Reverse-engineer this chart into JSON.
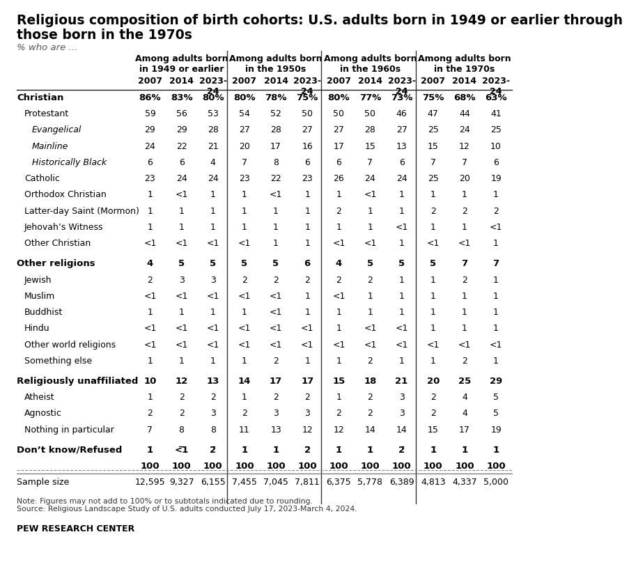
{
  "title_line1": "Religious composition of birth cohorts: U.S. adults born in 1949 or earlier through",
  "title_line2": "those born in the 1970s",
  "subtitle": "% who are ...",
  "col_group_headers": [
    "Among adults born\nin 1949 or earlier",
    "Among adults born\nin the 1950s",
    "Among adults born\nin the 1960s",
    "Among adults born\nin the 1970s"
  ],
  "col_years": [
    "2007",
    "2014",
    "2023-\n24"
  ],
  "rows": [
    {
      "label": "Christian",
      "indent": 0,
      "bold": true,
      "style": "normal",
      "values": [
        "86%",
        "83%",
        "80%",
        "80%",
        "78%",
        "75%",
        "80%",
        "77%",
        "73%",
        "75%",
        "68%",
        "63%"
      ]
    },
    {
      "label": "Protestant",
      "indent": 1,
      "bold": false,
      "style": "normal",
      "values": [
        "59",
        "56",
        "53",
        "54",
        "52",
        "50",
        "50",
        "50",
        "46",
        "47",
        "44",
        "41"
      ]
    },
    {
      "label": "Evangelical",
      "indent": 2,
      "bold": false,
      "style": "italic",
      "values": [
        "29",
        "29",
        "28",
        "27",
        "28",
        "27",
        "27",
        "28",
        "27",
        "25",
        "24",
        "25"
      ]
    },
    {
      "label": "Mainline",
      "indent": 2,
      "bold": false,
      "style": "italic",
      "values": [
        "24",
        "22",
        "21",
        "20",
        "17",
        "16",
        "17",
        "15",
        "13",
        "15",
        "12",
        "10"
      ]
    },
    {
      "label": "Historically Black",
      "indent": 2,
      "bold": false,
      "style": "italic",
      "values": [
        "6",
        "6",
        "4",
        "7",
        "8",
        "6",
        "6",
        "7",
        "6",
        "7",
        "7",
        "6"
      ]
    },
    {
      "label": "Catholic",
      "indent": 1,
      "bold": false,
      "style": "normal",
      "values": [
        "23",
        "24",
        "24",
        "23",
        "22",
        "23",
        "26",
        "24",
        "24",
        "25",
        "20",
        "19"
      ]
    },
    {
      "label": "Orthodox Christian",
      "indent": 1,
      "bold": false,
      "style": "normal",
      "values": [
        "1",
        "<1",
        "1",
        "1",
        "<1",
        "1",
        "1",
        "<1",
        "1",
        "1",
        "1",
        "1"
      ]
    },
    {
      "label": "Latter-day Saint (Mormon)",
      "indent": 1,
      "bold": false,
      "style": "normal",
      "values": [
        "1",
        "1",
        "1",
        "1",
        "1",
        "1",
        "2",
        "1",
        "1",
        "2",
        "2",
        "2"
      ]
    },
    {
      "label": "Jehovah’s Witness",
      "indent": 1,
      "bold": false,
      "style": "normal",
      "values": [
        "1",
        "1",
        "1",
        "1",
        "1",
        "1",
        "1",
        "1",
        "<1",
        "1",
        "1",
        "<1"
      ]
    },
    {
      "label": "Other Christian",
      "indent": 1,
      "bold": false,
      "style": "normal",
      "values": [
        "<1",
        "<1",
        "<1",
        "<1",
        "1",
        "1",
        "<1",
        "<1",
        "1",
        "<1",
        "<1",
        "1"
      ]
    },
    {
      "label": "Other religions",
      "indent": 0,
      "bold": true,
      "style": "normal",
      "values": [
        "4",
        "5",
        "5",
        "5",
        "5",
        "6",
        "4",
        "5",
        "5",
        "5",
        "7",
        "7"
      ]
    },
    {
      "label": "Jewish",
      "indent": 1,
      "bold": false,
      "style": "normal",
      "values": [
        "2",
        "3",
        "3",
        "2",
        "2",
        "2",
        "2",
        "2",
        "1",
        "1",
        "2",
        "1"
      ]
    },
    {
      "label": "Muslim",
      "indent": 1,
      "bold": false,
      "style": "normal",
      "values": [
        "<1",
        "<1",
        "<1",
        "<1",
        "<1",
        "1",
        "<1",
        "1",
        "1",
        "1",
        "1",
        "1"
      ]
    },
    {
      "label": "Buddhist",
      "indent": 1,
      "bold": false,
      "style": "normal",
      "values": [
        "1",
        "1",
        "1",
        "1",
        "<1",
        "1",
        "1",
        "1",
        "1",
        "1",
        "1",
        "1"
      ]
    },
    {
      "label": "Hindu",
      "indent": 1,
      "bold": false,
      "style": "normal",
      "values": [
        "<1",
        "<1",
        "<1",
        "<1",
        "<1",
        "<1",
        "1",
        "<1",
        "<1",
        "1",
        "1",
        "1"
      ]
    },
    {
      "label": "Other world religions",
      "indent": 1,
      "bold": false,
      "style": "normal",
      "values": [
        "<1",
        "<1",
        "<1",
        "<1",
        "<1",
        "<1",
        "<1",
        "<1",
        "<1",
        "<1",
        "<1",
        "<1"
      ]
    },
    {
      "label": "Something else",
      "indent": 1,
      "bold": false,
      "style": "normal",
      "values": [
        "1",
        "1",
        "1",
        "1",
        "2",
        "1",
        "1",
        "2",
        "1",
        "1",
        "2",
        "1"
      ]
    },
    {
      "label": "Religiously unaffiliated",
      "indent": 0,
      "bold": true,
      "style": "normal",
      "values": [
        "10",
        "12",
        "13",
        "14",
        "17",
        "17",
        "15",
        "18",
        "21",
        "20",
        "25",
        "29"
      ]
    },
    {
      "label": "Atheist",
      "indent": 1,
      "bold": false,
      "style": "normal",
      "values": [
        "1",
        "2",
        "2",
        "1",
        "2",
        "2",
        "1",
        "2",
        "3",
        "2",
        "4",
        "5"
      ]
    },
    {
      "label": "Agnostic",
      "indent": 1,
      "bold": false,
      "style": "normal",
      "values": [
        "2",
        "2",
        "3",
        "2",
        "3",
        "3",
        "2",
        "2",
        "3",
        "2",
        "4",
        "5"
      ]
    },
    {
      "label": "Nothing in particular",
      "indent": 1,
      "bold": false,
      "style": "normal",
      "values": [
        "7",
        "8",
        "8",
        "11",
        "13",
        "12",
        "12",
        "14",
        "14",
        "15",
        "17",
        "19"
      ]
    },
    {
      "label": "Don’t know/Refused",
      "indent": 0,
      "bold": true,
      "style": "underline",
      "values": [
        "1",
        "<1",
        "2",
        "1",
        "1",
        "2",
        "1",
        "1",
        "2",
        "1",
        "1",
        "1"
      ]
    },
    {
      "label": "",
      "indent": 0,
      "bold": true,
      "style": "normal",
      "values": [
        "100",
        "100",
        "100",
        "100",
        "100",
        "100",
        "100",
        "100",
        "100",
        "100",
        "100",
        "100"
      ]
    },
    {
      "label": "Sample size",
      "indent": 0,
      "bold": false,
      "style": "normal",
      "values": [
        "12,595",
        "9,327",
        "6,155",
        "7,455",
        "7,045",
        "7,811",
        "6,375",
        "5,778",
        "6,389",
        "4,813",
        "4,337",
        "5,000"
      ]
    }
  ],
  "note": "Note: Figures may not add to 100% or to subtotals indicated due to rounding.\nSource: Religious Landscape Study of U.S. adults conducted July 17, 2023-March 4, 2024.",
  "footer": "PEW RESEARCH CENTER",
  "background_color": "#ffffff",
  "text_color": "#000000"
}
